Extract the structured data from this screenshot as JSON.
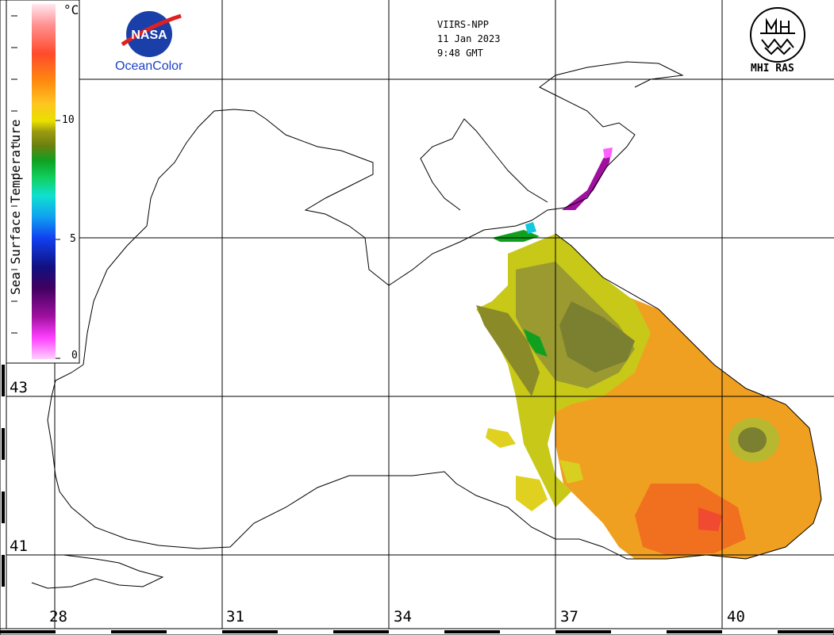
{
  "header": {
    "sensor": "VIIRS-NPP",
    "date": "11 Jan 2023",
    "time": "9:48 GMT"
  },
  "logos": {
    "left_caption": "OceanColor",
    "left_emblem_text": "NASA",
    "right_caption": "MHI RAS"
  },
  "colorbar": {
    "title": "Sea Surface Temperature",
    "unit": "°C",
    "ticks": [
      "10",
      "5",
      "0"
    ],
    "colors": [
      "#ffe8f0",
      "#ff9090",
      "#ff4a2a",
      "#ff8c10",
      "#ffc420",
      "#e8e000",
      "#9a9a10",
      "#6a8010",
      "#10a020",
      "#10d060",
      "#10e0d0",
      "#10a0f0",
      "#1040f0",
      "#101080",
      "#400060",
      "#a010a0",
      "#ff40ff",
      "#ffd0ff"
    ]
  },
  "axes": {
    "latitude_labels": [
      "43",
      "41"
    ],
    "longitude_labels": [
      "28",
      "31",
      "34",
      "37",
      "40"
    ]
  }
}
